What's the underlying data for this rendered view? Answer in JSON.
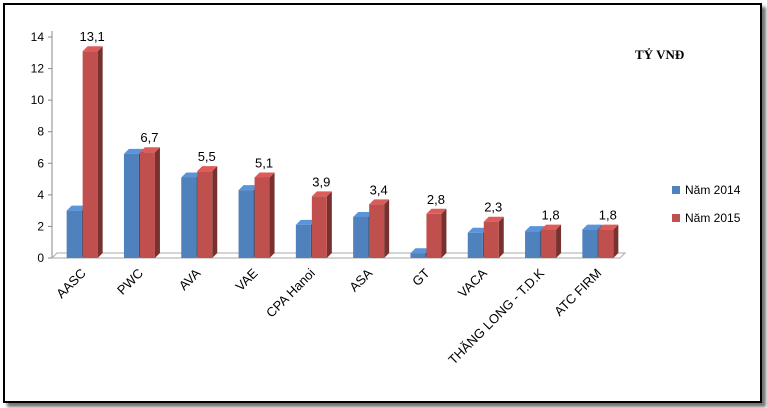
{
  "chart_data": {
    "type": "bar",
    "categories": [
      "AASC",
      "PWC",
      "AVA",
      "VAE",
      "CPA Hanoi",
      "ASA",
      "GT",
      "VACA",
      "THĂNG LONG - T.D.K",
      "ATC FIRM"
    ],
    "series": [
      {
        "name": "Năm 2014",
        "color": "#4f81bd",
        "values": [
          3.0,
          6.6,
          5.1,
          4.3,
          2.1,
          2.6,
          0.3,
          1.6,
          1.7,
          1.8
        ]
      },
      {
        "name": "Năm 2015",
        "color": "#c0504d",
        "values": [
          13.1,
          6.7,
          5.5,
          5.1,
          3.9,
          3.4,
          2.8,
          2.3,
          1.8,
          1.8
        ]
      }
    ],
    "data_labels": [
      "13,1",
      "6,7",
      "5,5",
      "5,1",
      "3,9",
      "3,4",
      "2,8",
      "2,3",
      "1,8",
      "1,8"
    ],
    "y_ticks": [
      "0",
      "2",
      "4",
      "6",
      "8",
      "10",
      "12",
      "14"
    ],
    "ylim": [
      0,
      14
    ],
    "unit_label": "TỶ VNĐ",
    "legend_position": "right",
    "grid": false
  }
}
